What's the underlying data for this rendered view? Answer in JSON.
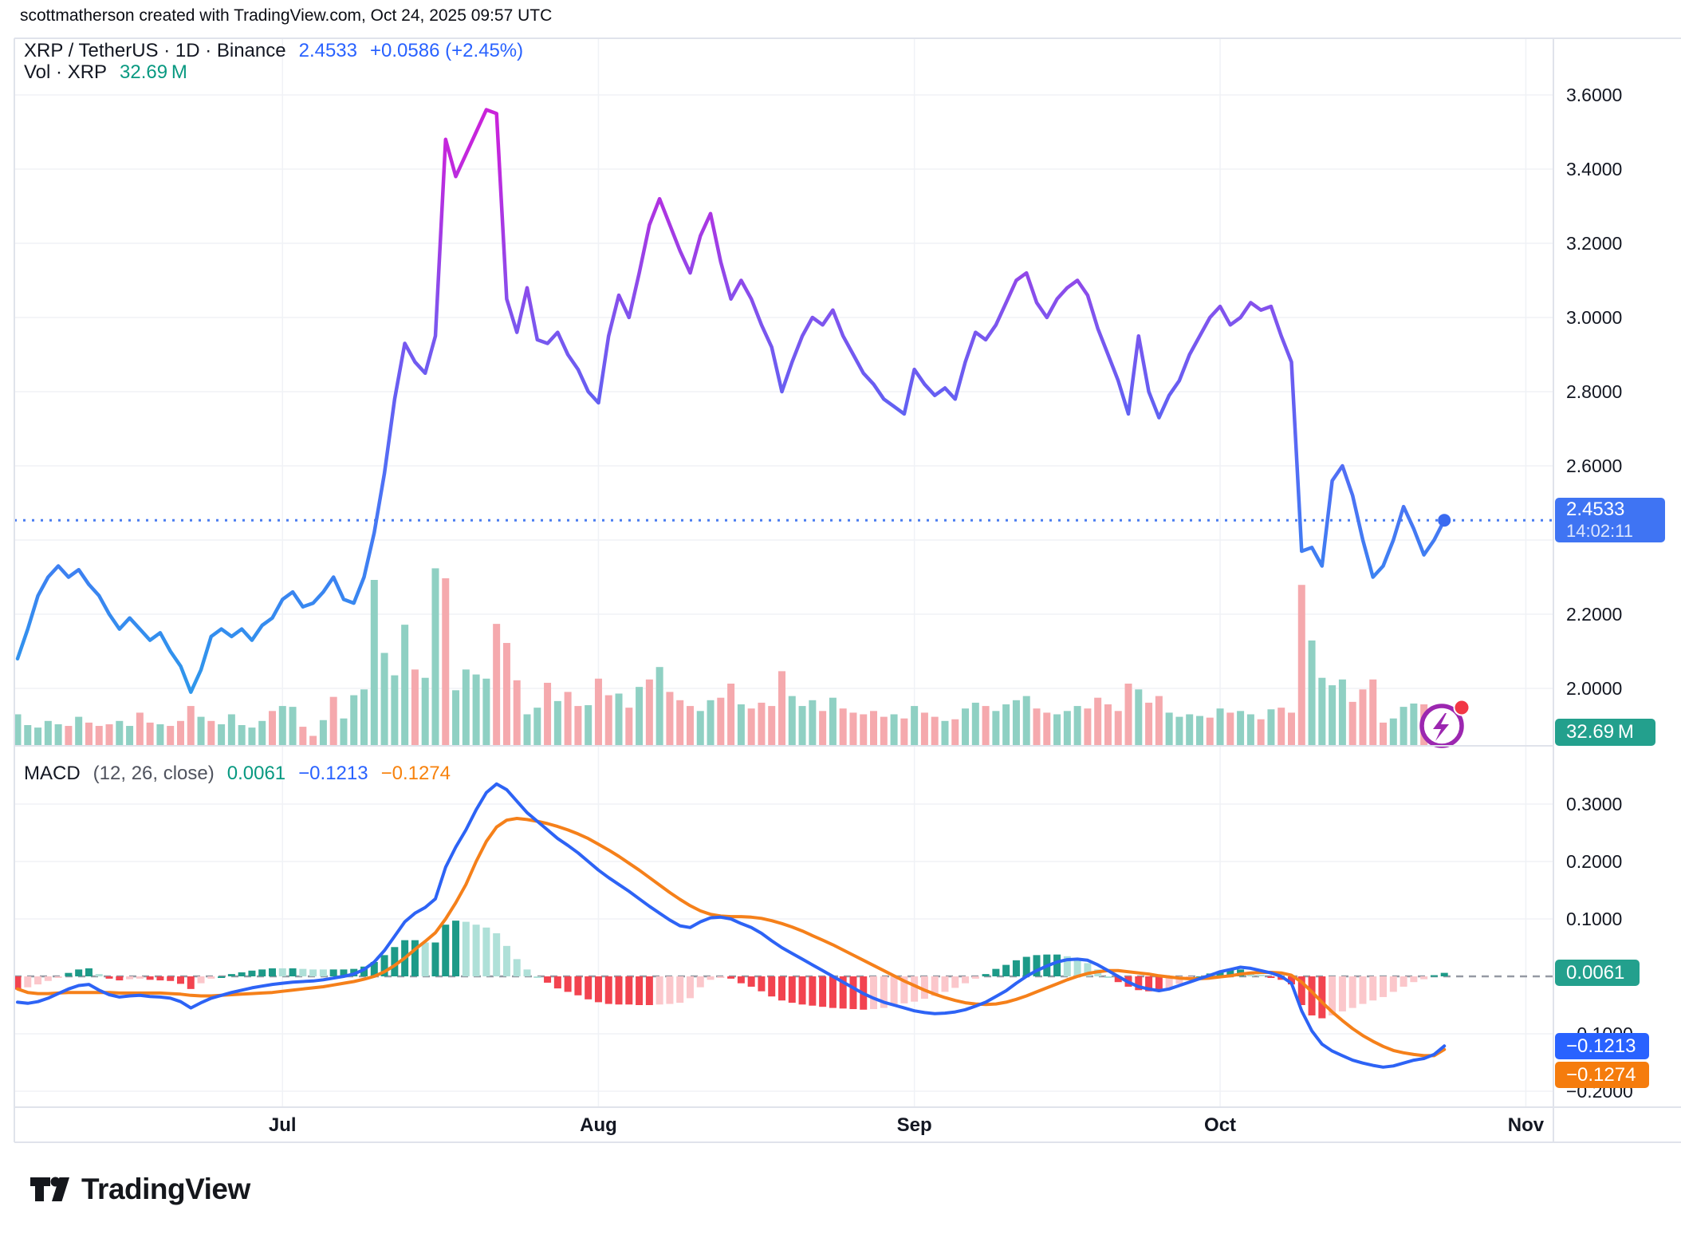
{
  "header": {
    "attribution": "scottmatherson created with TradingView.com, Oct 24, 2025 09:57 UTC",
    "symbol": "XRP / TetherUS · 1D · Binance",
    "last_price": "2.4533",
    "change": "+0.0586 (+2.45%)",
    "vol_label": "Vol · XRP",
    "vol_value": "32.69 M"
  },
  "macd_legend": {
    "name": "MACD",
    "params": "(12, 26, close)",
    "hist_value": "0.0061",
    "macd_value": "−0.1213",
    "signal_value": "−0.1274"
  },
  "price_scale": {
    "ticks": [
      {
        "label": "3.6000",
        "value": 3.6
      },
      {
        "label": "3.4000",
        "value": 3.4
      },
      {
        "label": "3.2000",
        "value": 3.2
      },
      {
        "label": "3.0000",
        "value": 3.0
      },
      {
        "label": "2.8000",
        "value": 2.8
      },
      {
        "label": "2.6000",
        "value": 2.6
      },
      {
        "label": "2.2000",
        "value": 2.2
      },
      {
        "label": "2.0000",
        "value": 2.0
      }
    ],
    "price_label": {
      "value": "2.4533",
      "countdown": "14:02:11"
    },
    "volume_label": "32.69 M"
  },
  "macd_scale": {
    "ticks": [
      {
        "label": "0.3000",
        "value": 0.3
      },
      {
        "label": "0.2000",
        "value": 0.2
      },
      {
        "label": "0.1000",
        "value": 0.1
      },
      {
        "label": "−0.1000",
        "value": -0.1
      },
      {
        "label": "−0.2000",
        "value": -0.2
      }
    ],
    "hist_label": "0.0061",
    "macd_label": "−0.1213",
    "signal_label": "−0.1274"
  },
  "logo": {
    "text": "TradingView"
  },
  "colors": {
    "accent_blue": "#2962FF",
    "teal": "#089981",
    "orange": "#F7820D",
    "grid": "#F0F2F6",
    "frame": "#E0E3EB",
    "volume_up": "#8FD0C3",
    "volume_down": "#F5A9AD",
    "hist_pos_grow": "#1D9A88",
    "hist_pos_fade": "#AFE0D8",
    "hist_neg_grow": "#F2434F",
    "hist_neg_fade": "#FBC7CB",
    "macd_line": "#2D63F5",
    "signal_line": "#F5801A",
    "dotted_price_line": "#4A7DF0",
    "zero_dash": "#9599A3",
    "last_dot": "#3A6AF0",
    "flash_purple": "#9C27B0",
    "flash_red": "#F23645",
    "axis_text": "#131722",
    "gradient_stops": [
      "#CF1FD8",
      "#C228DD",
      "#A13CE5",
      "#7E55EE",
      "#655FF2",
      "#4F70F5",
      "#3F7EF2",
      "#338FEE",
      "#2D9BE9"
    ]
  },
  "chart_data": {
    "type": "line",
    "title": "XRP / TetherUS 1D Binance with Volume and MACD(12,26,close)",
    "x": {
      "start_date": "2025-06-05",
      "interval": "1D",
      "count": 141,
      "month_ticks": [
        {
          "label": "Jul",
          "i": 26
        },
        {
          "label": "Aug",
          "i": 57
        },
        {
          "label": "Sep",
          "i": 88
        },
        {
          "label": "Oct",
          "i": 118
        },
        {
          "label": "Nov",
          "i": 148
        }
      ]
    },
    "price_pane": {
      "ylim": [
        1.85,
        3.75
      ],
      "yticks": [
        2.0,
        2.2,
        2.4,
        2.6,
        2.8,
        3.0,
        3.2,
        3.4,
        3.6
      ],
      "last_value": 2.4533,
      "values": [
        2.08,
        2.16,
        2.25,
        2.3,
        2.33,
        2.3,
        2.32,
        2.28,
        2.25,
        2.2,
        2.16,
        2.19,
        2.16,
        2.13,
        2.15,
        2.1,
        2.06,
        1.99,
        2.05,
        2.14,
        2.16,
        2.14,
        2.16,
        2.13,
        2.17,
        2.19,
        2.24,
        2.26,
        2.22,
        2.23,
        2.26,
        2.3,
        2.24,
        2.23,
        2.3,
        2.42,
        2.58,
        2.78,
        2.93,
        2.88,
        2.85,
        2.95,
        3.48,
        3.38,
        3.44,
        3.5,
        3.56,
        3.55,
        3.05,
        2.96,
        3.08,
        2.94,
        2.93,
        2.96,
        2.9,
        2.86,
        2.8,
        2.77,
        2.95,
        3.06,
        3.0,
        3.12,
        3.25,
        3.32,
        3.25,
        3.18,
        3.12,
        3.22,
        3.28,
        3.15,
        3.05,
        3.1,
        3.05,
        2.98,
        2.92,
        2.8,
        2.88,
        2.95,
        3.0,
        2.98,
        3.02,
        2.95,
        2.9,
        2.85,
        2.82,
        2.78,
        2.76,
        2.74,
        2.86,
        2.82,
        2.79,
        2.81,
        2.78,
        2.88,
        2.96,
        2.94,
        2.98,
        3.04,
        3.1,
        3.12,
        3.04,
        3.0,
        3.05,
        3.08,
        3.1,
        3.06,
        2.97,
        2.9,
        2.83,
        2.74,
        2.95,
        2.8,
        2.73,
        2.79,
        2.83,
        2.9,
        2.95,
        3.0,
        3.03,
        2.98,
        3.0,
        3.04,
        3.02,
        3.03,
        2.95,
        2.88,
        2.37,
        2.38,
        2.33,
        2.56,
        2.6,
        2.52,
        2.4,
        2.3,
        2.33,
        2.4,
        2.49,
        2.43,
        2.36,
        2.4,
        2.4533
      ]
    },
    "volume_pane": {
      "unit": "M XRP",
      "last_label": "32.69 M",
      "values": [
        38,
        25,
        22,
        30,
        26,
        24,
        35,
        28,
        24,
        26,
        30,
        24,
        40,
        28,
        26,
        24,
        30,
        48,
        35,
        30,
        26,
        38,
        25,
        22,
        30,
        42,
        48,
        47,
        23,
        12,
        31,
        59,
        33,
        61,
        68,
        200,
        112,
        85,
        146,
        92,
        82,
        214,
        202,
        67,
        92,
        86,
        81,
        147,
        124,
        79,
        38,
        46,
        76,
        54,
        65,
        48,
        49,
        81,
        61,
        63,
        46,
        71,
        80,
        95,
        65,
        55,
        48,
        42,
        55,
        58,
        75,
        50,
        45,
        52,
        48,
        90,
        60,
        48,
        55,
        42,
        58,
        45,
        40,
        38,
        42,
        35,
        38,
        33,
        48,
        40,
        35,
        30,
        32,
        45,
        52,
        48,
        42,
        50,
        55,
        60,
        45,
        40,
        38,
        42,
        48,
        45,
        58,
        50,
        42,
        75,
        68,
        52,
        60,
        40,
        35,
        38,
        36,
        34,
        45,
        40,
        42,
        38,
        32,
        44,
        46,
        40,
        194,
        127,
        82,
        73,
        80,
        53,
        68,
        80,
        28,
        33,
        47,
        51,
        50,
        30,
        32.69
      ],
      "up": [
        1,
        1,
        1,
        1,
        1,
        0,
        1,
        0,
        0,
        0,
        1,
        1,
        0,
        0,
        1,
        0,
        0,
        0,
        1,
        0,
        1,
        1,
        1,
        1,
        1,
        0,
        1,
        1,
        0,
        0,
        1,
        0,
        1,
        1,
        1,
        1,
        1,
        1,
        1,
        0,
        1,
        1,
        0,
        1,
        1,
        1,
        1,
        0,
        0,
        0,
        1,
        1,
        0,
        1,
        0,
        0,
        1,
        0,
        0,
        1,
        0,
        1,
        0,
        1,
        0,
        0,
        0,
        1,
        1,
        0,
        0,
        1,
        0,
        0,
        0,
        0,
        1,
        1,
        1,
        0,
        1,
        0,
        0,
        0,
        0,
        0,
        1,
        0,
        1,
        0,
        0,
        1,
        0,
        1,
        1,
        0,
        1,
        1,
        1,
        1,
        0,
        0,
        1,
        1,
        1,
        0,
        0,
        0,
        0,
        0,
        1,
        0,
        0,
        1,
        1,
        1,
        1,
        0,
        1,
        0,
        1,
        1,
        0,
        1,
        0,
        0,
        0,
        1,
        1,
        1,
        1,
        0,
        0,
        0,
        0,
        1,
        1,
        1,
        0,
        0,
        1
      ]
    },
    "macd_pane": {
      "ylim": [
        -0.23,
        0.36
      ],
      "yticks": [
        -0.2,
        -0.1,
        0,
        0.1,
        0.2,
        0.3
      ],
      "last": {
        "hist": 0.0061,
        "macd": -0.1213,
        "signal": -0.1274
      },
      "macd": [
        -0.045,
        -0.047,
        -0.044,
        -0.038,
        -0.03,
        -0.022,
        -0.016,
        -0.014,
        -0.024,
        -0.032,
        -0.036,
        -0.034,
        -0.033,
        -0.035,
        -0.036,
        -0.038,
        -0.044,
        -0.055,
        -0.046,
        -0.038,
        -0.033,
        -0.028,
        -0.024,
        -0.02,
        -0.017,
        -0.014,
        -0.012,
        -0.01,
        -0.009,
        -0.008,
        -0.006,
        -0.003,
        0.0,
        0.004,
        0.012,
        0.025,
        0.045,
        0.07,
        0.095,
        0.11,
        0.12,
        0.135,
        0.19,
        0.225,
        0.255,
        0.29,
        0.32,
        0.335,
        0.325,
        0.305,
        0.285,
        0.27,
        0.255,
        0.24,
        0.228,
        0.215,
        0.2,
        0.185,
        0.172,
        0.16,
        0.148,
        0.135,
        0.122,
        0.11,
        0.098,
        0.088,
        0.085,
        0.095,
        0.102,
        0.103,
        0.1,
        0.092,
        0.085,
        0.075,
        0.062,
        0.05,
        0.04,
        0.03,
        0.02,
        0.01,
        0.0,
        -0.01,
        -0.02,
        -0.03,
        -0.038,
        -0.045,
        -0.05,
        -0.055,
        -0.06,
        -0.063,
        -0.065,
        -0.064,
        -0.062,
        -0.058,
        -0.052,
        -0.045,
        -0.035,
        -0.025,
        -0.012,
        0.0,
        0.01,
        0.018,
        0.025,
        0.029,
        0.03,
        0.028,
        0.02,
        0.01,
        0.0,
        -0.01,
        -0.018,
        -0.022,
        -0.025,
        -0.022,
        -0.016,
        -0.01,
        -0.004,
        0.002,
        0.008,
        0.012,
        0.016,
        0.014,
        0.01,
        0.006,
        0.0,
        -0.012,
        -0.06,
        -0.095,
        -0.118,
        -0.13,
        -0.138,
        -0.146,
        -0.151,
        -0.155,
        -0.158,
        -0.156,
        -0.151,
        -0.146,
        -0.143,
        -0.136,
        -0.1213
      ],
      "signal": [
        -0.022,
        -0.028,
        -0.03,
        -0.03,
        -0.029,
        -0.028,
        -0.028,
        -0.028,
        -0.028,
        -0.028,
        -0.029,
        -0.029,
        -0.029,
        -0.029,
        -0.029,
        -0.03,
        -0.031,
        -0.033,
        -0.034,
        -0.034,
        -0.033,
        -0.032,
        -0.031,
        -0.03,
        -0.029,
        -0.028,
        -0.026,
        -0.024,
        -0.022,
        -0.02,
        -0.018,
        -0.015,
        -0.012,
        -0.009,
        -0.005,
        0.0,
        0.008,
        0.019,
        0.032,
        0.047,
        0.061,
        0.076,
        0.1,
        0.128,
        0.16,
        0.2,
        0.235,
        0.26,
        0.272,
        0.275,
        0.273,
        0.27,
        0.266,
        0.261,
        0.255,
        0.248,
        0.24,
        0.23,
        0.22,
        0.209,
        0.197,
        0.185,
        0.172,
        0.159,
        0.146,
        0.134,
        0.123,
        0.114,
        0.108,
        0.105,
        0.104,
        0.104,
        0.103,
        0.101,
        0.097,
        0.092,
        0.086,
        0.079,
        0.071,
        0.063,
        0.055,
        0.046,
        0.037,
        0.028,
        0.019,
        0.01,
        0.001,
        -0.008,
        -0.016,
        -0.024,
        -0.031,
        -0.037,
        -0.042,
        -0.046,
        -0.048,
        -0.049,
        -0.048,
        -0.045,
        -0.04,
        -0.034,
        -0.027,
        -0.02,
        -0.013,
        -0.006,
        0.0,
        0.005,
        0.008,
        0.01,
        0.01,
        0.008,
        0.006,
        0.004,
        0.001,
        -0.001,
        -0.003,
        -0.004,
        -0.004,
        -0.003,
        -0.001,
        0.001,
        0.004,
        0.006,
        0.007,
        0.007,
        0.006,
        0.002,
        -0.01,
        -0.027,
        -0.045,
        -0.062,
        -0.077,
        -0.091,
        -0.103,
        -0.113,
        -0.122,
        -0.129,
        -0.133,
        -0.136,
        -0.138,
        -0.138,
        -0.1274
      ]
    }
  }
}
